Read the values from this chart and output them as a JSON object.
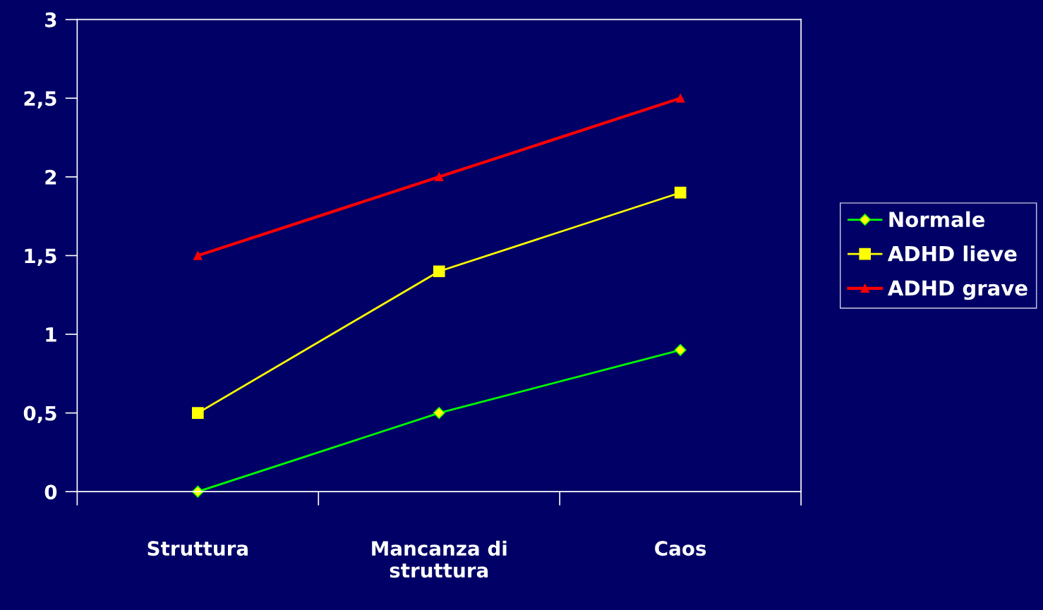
{
  "chart_data": {
    "type": "line",
    "categories": [
      "Struttura",
      "Mancanza di\nstruttura",
      "Caos"
    ],
    "series": [
      {
        "name": "Normale",
        "color": "#00ff00",
        "marker": "diamond",
        "values": [
          0,
          0.5,
          0.9
        ]
      },
      {
        "name": "ADHD lieve",
        "color": "#ffff00",
        "marker": "square",
        "values": [
          0.5,
          1.4,
          1.9
        ]
      },
      {
        "name": "ADHD grave",
        "color": "#ff0000",
        "marker": "triangle",
        "values": [
          1.5,
          2.0,
          2.5
        ]
      }
    ],
    "ylim": [
      0,
      3
    ],
    "yticks": [
      0,
      {
        "value": 0.5,
        "label": "0,5"
      },
      1,
      {
        "value": 1.5,
        "label": "1,5"
      },
      2,
      {
        "value": 2.5,
        "label": "2,5"
      },
      3
    ],
    "grid": false,
    "legend": "right",
    "line_style": "solid"
  }
}
